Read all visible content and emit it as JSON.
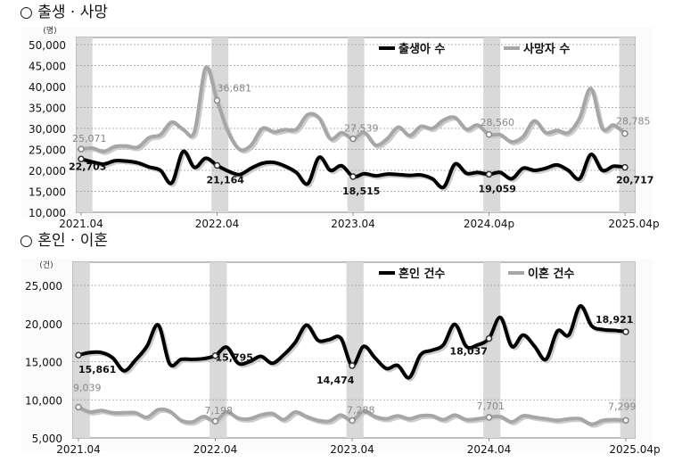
{
  "charts": [
    {
      "title": "○ 출생 · 사망",
      "chart_data": {
        "type": "line",
        "unit": "(명)",
        "ylim": [
          10000,
          50000
        ],
        "yticks": [
          10000,
          15000,
          20000,
          25000,
          30000,
          35000,
          40000,
          45000,
          50000
        ],
        "ytick_labels": [
          "10,000",
          "15,000",
          "20,000",
          "25,000",
          "30,000",
          "35,000",
          "40,000",
          "45,000",
          "50,000"
        ],
        "x_tick_labels": [
          "2021.04",
          "2022.04",
          "2023.04",
          "2024.04p",
          "2025.04p"
        ],
        "x_range": [
          "2021.04",
          "2025.04"
        ],
        "grid": true,
        "legend_placement": "top",
        "series": [
          {
            "name": "출생아 수",
            "color": "#000000",
            "values": [
              22703,
              22000,
              21500,
              22300,
              22200,
              21800,
              20800,
              20000,
              17000,
              24500,
              20700,
              22900,
              21164,
              19800,
              19000,
              20500,
              21700,
              21900,
              21000,
              19500,
              16800,
              23100,
              20000,
              21100,
              18515,
              19200,
              18700,
              19100,
              19000,
              18800,
              18900,
              18000,
              16000,
              21500,
              19300,
              19500,
              19059,
              19500,
              18000,
              20500,
              20000,
              20500,
              21300,
              20000,
              18000,
              23800,
              20000,
              21000,
              20717
            ]
          },
          {
            "name": "사망자 수",
            "color": "#a6a6a6",
            "values": [
              25071,
              25300,
              24500,
              25700,
              25800,
              25500,
              27800,
              28500,
              31500,
              29800,
              29200,
              44500,
              36681,
              29000,
              25000,
              26000,
              30000,
              29200,
              29700,
              29800,
              33300,
              32500,
              27500,
              29000,
              27539,
              29000,
              26000,
              27500,
              30300,
              28300,
              30500,
              30000,
              32000,
              32600,
              29800,
              30800,
              28560,
              28500,
              26800,
              28000,
              31800,
              29000,
              29500,
              29000,
              32500,
              39500,
              30000,
              30800,
              28785
            ]
          }
        ],
        "annotations": [
          {
            "series": 0,
            "index": 0,
            "label": "22,703"
          },
          {
            "series": 0,
            "index": 12,
            "label": "21,164"
          },
          {
            "series": 0,
            "index": 24,
            "label": "18,515"
          },
          {
            "series": 0,
            "index": 36,
            "label": "19,059"
          },
          {
            "series": 0,
            "index": 48,
            "label": "20,717"
          },
          {
            "series": 1,
            "index": 0,
            "label": "25,071"
          },
          {
            "series": 1,
            "index": 12,
            "label": "36,681"
          },
          {
            "series": 1,
            "index": 24,
            "label": "27,539"
          },
          {
            "series": 1,
            "index": 36,
            "label": "28,560"
          },
          {
            "series": 1,
            "index": 48,
            "label": "28,785"
          }
        ]
      }
    },
    {
      "title": "○ 혼인 · 이혼",
      "chart_data": {
        "type": "line",
        "unit": "(건)",
        "ylim": [
          5000,
          25000
        ],
        "yticks": [
          5000,
          10000,
          15000,
          20000,
          25000
        ],
        "ytick_labels": [
          "5,000",
          "10,000",
          "15,000",
          "20,000",
          "25,000"
        ],
        "x_tick_labels": [
          "2021.04",
          "2022.04",
          "2023.04",
          "2024.04",
          "2025.04p"
        ],
        "x_range": [
          "2021.04",
          "2025.04"
        ],
        "grid": true,
        "legend_placement": "top",
        "series": [
          {
            "name": "혼인 건수",
            "color": "#000000",
            "values": [
              15861,
              16200,
              16200,
              15500,
              13800,
              15200,
              17000,
              19800,
              14700,
              15300,
              15300,
              15400,
              15795,
              16900,
              14800,
              15000,
              15700,
              14800,
              15900,
              17500,
              19800,
              17800,
              17900,
              18100,
              14474,
              17000,
              15500,
              14100,
              14500,
              12900,
              15900,
              16500,
              17200,
              19900,
              17000,
              17200,
              18037,
              20800,
              17000,
              18500,
              17000,
              15300,
              19000,
              18500,
              22300,
              19700,
              19200,
              19100,
              18921
            ]
          },
          {
            "name": "이혼 건수",
            "color": "#a6a6a6",
            "values": [
              9039,
              8400,
              8600,
              8300,
              8300,
              8300,
              7700,
              8700,
              8500,
              7300,
              7100,
              7800,
              7198,
              8400,
              7600,
              7500,
              8000,
              8200,
              7400,
              8400,
              7800,
              7300,
              7200,
              8000,
              7288,
              8500,
              7800,
              7500,
              7900,
              7500,
              7900,
              7900,
              7400,
              8000,
              7400,
              7500,
              7701,
              7800,
              7100,
              7900,
              7700,
              7500,
              7300,
              7500,
              7500,
              6800,
              7300,
              7400,
              7299
            ]
          }
        ],
        "annotations": [
          {
            "series": 0,
            "index": 0,
            "label": "15,861"
          },
          {
            "series": 0,
            "index": 12,
            "label": "15,795"
          },
          {
            "series": 0,
            "index": 24,
            "label": "14,474"
          },
          {
            "series": 0,
            "index": 36,
            "label": "18,037"
          },
          {
            "series": 0,
            "index": 48,
            "label": "18,921"
          },
          {
            "series": 1,
            "index": 0,
            "label": "9,039"
          },
          {
            "series": 1,
            "index": 12,
            "label": "7,198"
          },
          {
            "series": 1,
            "index": 24,
            "label": "7,288"
          },
          {
            "series": 1,
            "index": 36,
            "label": "7,701"
          },
          {
            "series": 1,
            "index": 48,
            "label": "7,299"
          }
        ]
      }
    }
  ]
}
